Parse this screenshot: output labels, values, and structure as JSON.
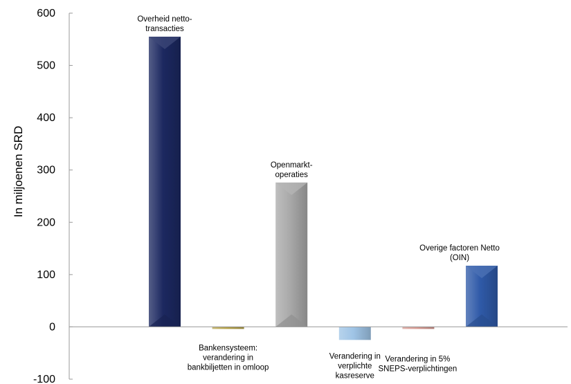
{
  "chart_data": {
    "type": "bar",
    "title": "",
    "xlabel": "",
    "ylabel": "In miljoenen SRD",
    "ylim": [
      -100,
      600
    ],
    "yticks": [
      "600",
      "500",
      "400",
      "300",
      "200",
      "100",
      "0",
      "-100"
    ],
    "ytick_values": [
      600,
      500,
      400,
      300,
      200,
      100,
      0,
      -100
    ],
    "grid": false,
    "legend": "none",
    "bars": [
      {
        "label_lines": [
          "Overheid netto-",
          "transacties"
        ],
        "value": 555,
        "color": "#1c2860",
        "label_pos": "above"
      },
      {
        "label_lines": [
          "Bankensysteem:",
          "verandering in",
          "bankbiljetten in omloop"
        ],
        "value": -3,
        "color": "#b5a24a",
        "label_pos": "below"
      },
      {
        "label_lines": [
          "Openmarkt-",
          "operaties"
        ],
        "value": 276,
        "color": "#a9a9a9",
        "label_pos": "above"
      },
      {
        "label_lines": [
          "Verandering in",
          "verplichte",
          "kasreserve"
        ],
        "value": -25,
        "color": "#9fc4e6",
        "label_pos": "below"
      },
      {
        "label_lines": [
          "Verandering in 5%",
          "SNEPS-verplichtingen"
        ],
        "value": -3,
        "color": "#d79a92",
        "label_pos": "below"
      },
      {
        "label_lines": [
          "Overige factoren Netto",
          "(OIN)"
        ],
        "value": 117,
        "color": "#2f5aa8",
        "label_pos": "above"
      }
    ]
  }
}
